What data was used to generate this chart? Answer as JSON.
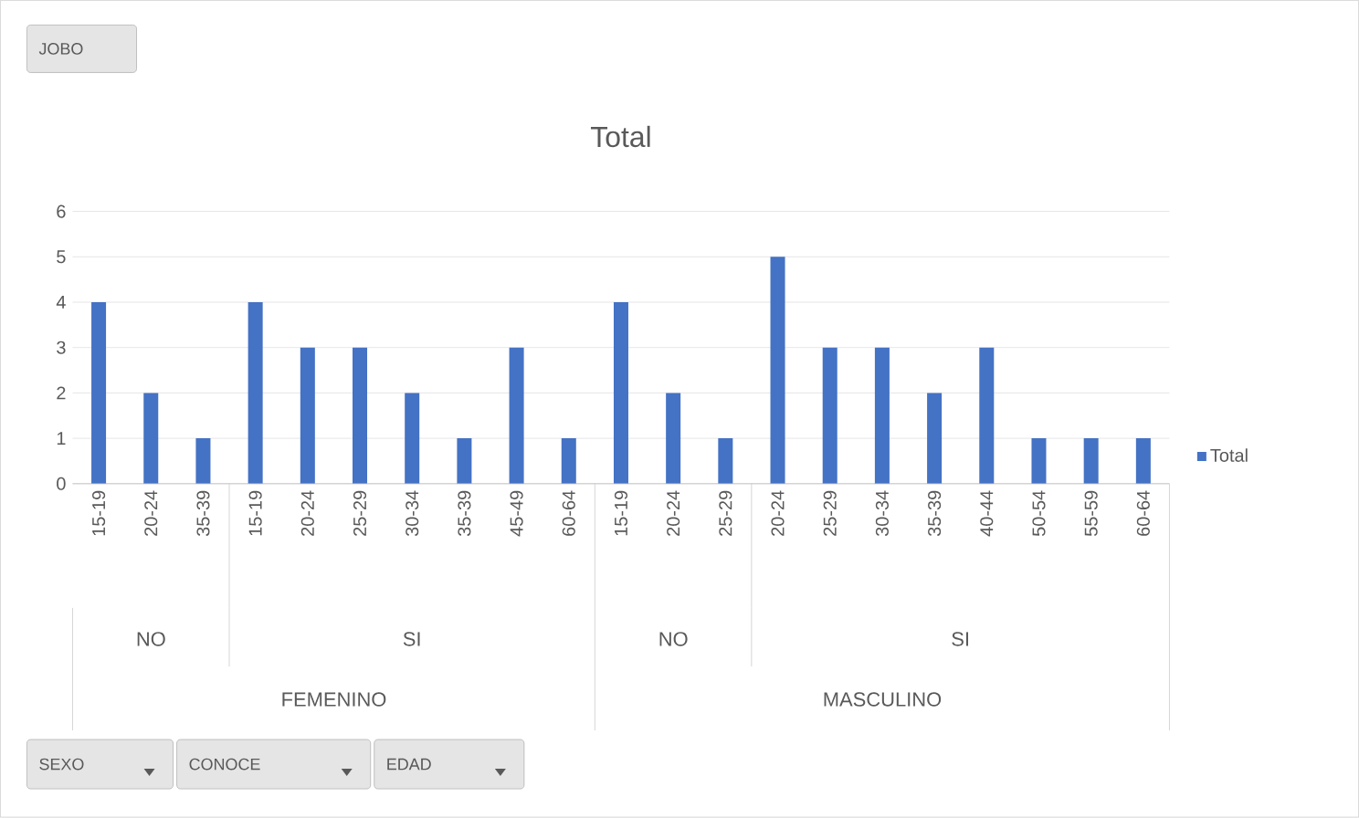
{
  "chart_data": {
    "type": "bar",
    "title": "Total",
    "categories": [
      "15-19",
      "20-24",
      "35-39",
      "15-19",
      "20-24",
      "25-29",
      "30-34",
      "35-39",
      "45-49",
      "60-64",
      "15-19",
      "20-24",
      "25-29",
      "20-24",
      "25-29",
      "30-34",
      "35-39",
      "40-44",
      "50-54",
      "55-59",
      "60-64"
    ],
    "series": [
      {
        "name": "Total",
        "color": "#4472c4",
        "values": [
          4,
          2,
          1,
          4,
          3,
          3,
          2,
          1,
          3,
          1,
          4,
          2,
          1,
          5,
          3,
          3,
          2,
          3,
          1,
          1,
          1
        ]
      }
    ],
    "ylim": [
      0,
      6
    ],
    "yticks": [
      0,
      1,
      2,
      3,
      4,
      5,
      6
    ],
    "grid": "y",
    "legend": "right",
    "annotations": [
      "NO",
      "SI",
      "NO",
      "SI",
      "FEMENINO",
      "MASCULINO",
      "JOBO",
      "SEXO",
      "CONOCE",
      "EDAD"
    ]
  }
}
